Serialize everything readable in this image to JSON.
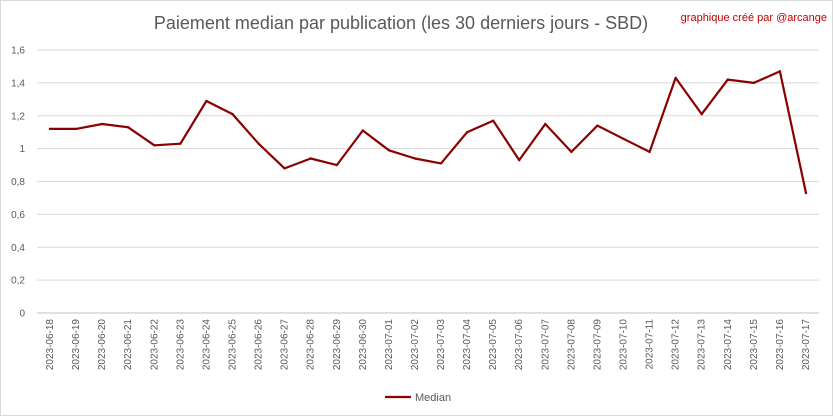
{
  "chart_data": {
    "type": "line",
    "title": "Paiement median par publication (les 30 derniers jours - SBD)",
    "credit": "graphique créé par @arcange",
    "xlabel": "",
    "ylabel": "",
    "ylim": [
      0,
      1.6
    ],
    "yticks": [
      0,
      0.2,
      0.4,
      0.6,
      0.8,
      1,
      1.2,
      1.4,
      1.6
    ],
    "ytick_labels": [
      "0",
      "0,2",
      "0,4",
      "0,6",
      "0,8",
      "1",
      "1,2",
      "1,4",
      "1,6"
    ],
    "grid": true,
    "legend_position": "bottom",
    "categories": [
      "2023-06-18",
      "2023-06-19",
      "2023-06-20",
      "2023-06-21",
      "2023-06-22",
      "2023-06-23",
      "2023-06-24",
      "2023-06-25",
      "2023-06-26",
      "2023-06-27",
      "2023-06-28",
      "2023-06-29",
      "2023-06-30",
      "2023-07-01",
      "2023-07-02",
      "2023-07-03",
      "2023-07-04",
      "2023-07-05",
      "2023-07-06",
      "2023-07-07",
      "2023-07-08",
      "2023-07-09",
      "2023-07-10",
      "2023-07-11",
      "2023-07-12",
      "2023-07-13",
      "2023-07-14",
      "2023-07-15",
      "2023-07-16",
      "2023-07-17"
    ],
    "series": [
      {
        "name": "Median",
        "color": "#8b0000",
        "values": [
          1.12,
          1.12,
          1.15,
          1.13,
          1.02,
          1.03,
          1.29,
          1.21,
          1.03,
          0.88,
          0.94,
          0.9,
          1.11,
          0.99,
          0.94,
          0.91,
          1.1,
          1.17,
          0.93,
          1.15,
          0.98,
          1.14,
          1.06,
          0.98,
          1.43,
          1.21,
          1.42,
          1.4,
          1.47,
          0.73
        ]
      }
    ]
  }
}
